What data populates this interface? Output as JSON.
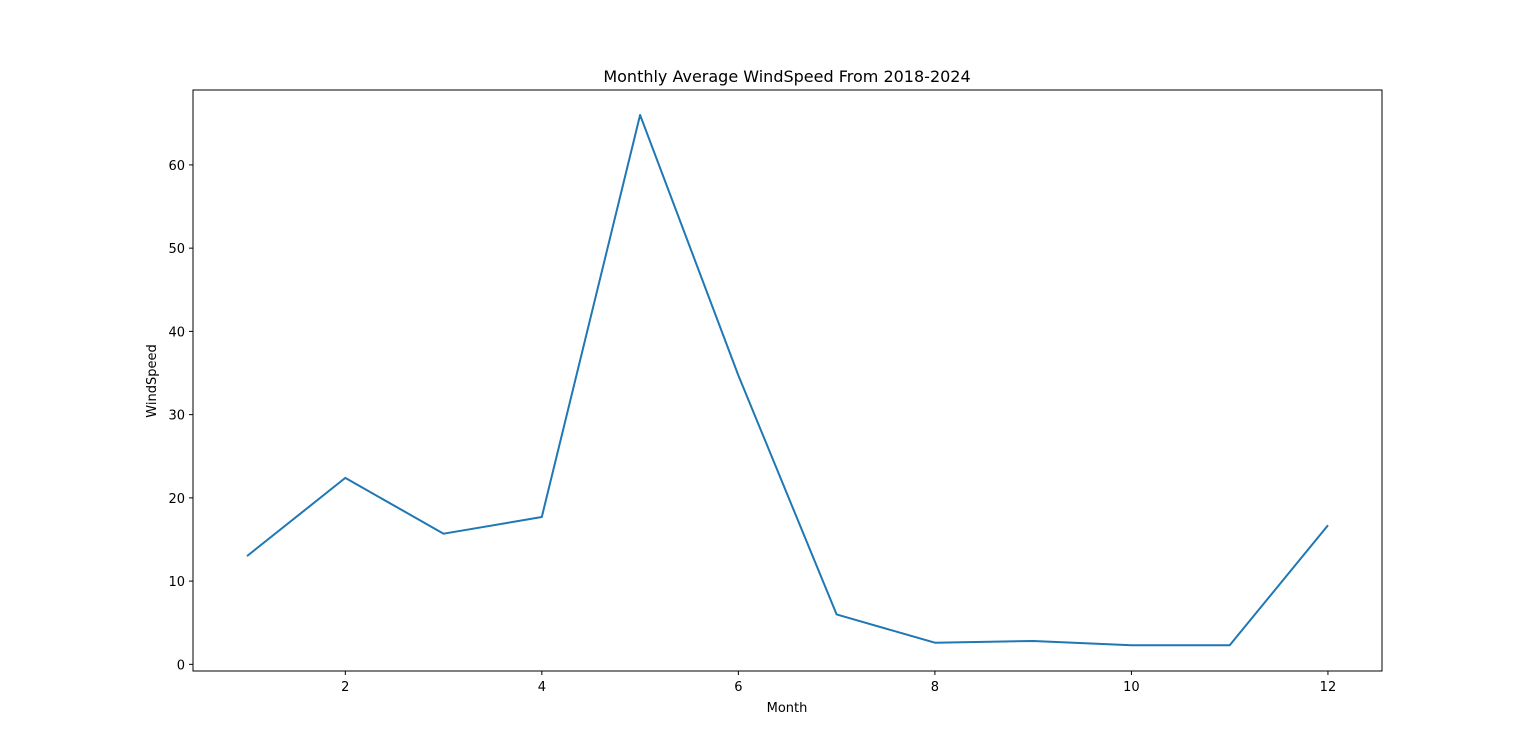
{
  "chart_data": {
    "type": "line",
    "title": "Monthly Average WindSpeed From 2018-2024",
    "xlabel": "Month",
    "ylabel": "WindSpeed",
    "x": [
      1,
      2,
      3,
      4,
      5,
      6,
      7,
      8,
      9,
      10,
      11,
      12
    ],
    "series": [
      {
        "values": [
          13.0,
          22.4,
          15.7,
          17.7,
          66.0,
          34.7,
          6.0,
          2.6,
          2.8,
          2.3,
          2.3,
          16.7
        ],
        "color": "#1f77b4"
      }
    ],
    "xlim": [
      0.45,
      12.55
    ],
    "ylim": [
      -0.8,
      69.0
    ],
    "xticks": [
      2,
      4,
      6,
      8,
      10,
      12
    ],
    "yticks": [
      0,
      10,
      20,
      30,
      40,
      50,
      60
    ],
    "grid": false,
    "legend": "none"
  }
}
